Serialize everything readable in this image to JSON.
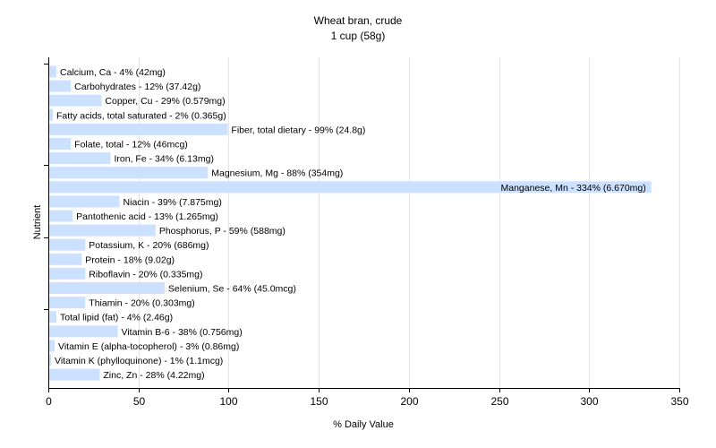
{
  "chart_data": {
    "type": "bar",
    "orientation": "horizontal",
    "title": "Wheat bran, crude",
    "subtitle": "1 cup (58g)",
    "xlabel": "% Daily Value",
    "ylabel": "Nutrient",
    "xlim": [
      0,
      350
    ],
    "xticks": [
      0,
      50,
      100,
      150,
      200,
      250,
      300,
      350
    ],
    "grid": true,
    "bar_color": "#cce0ff",
    "categories": [
      "Calcium, Ca",
      "Carbohydrates",
      "Copper, Cu",
      "Fatty acids, total saturated",
      "Fiber, total dietary",
      "Folate, total",
      "Iron, Fe",
      "Magnesium, Mg",
      "Manganese, Mn",
      "Niacin",
      "Pantothenic acid",
      "Phosphorus, P",
      "Potassium, K",
      "Protein",
      "Riboflavin",
      "Selenium, Se",
      "Thiamin",
      "Total lipid (fat)",
      "Vitamin B-6",
      "Vitamin E (alpha-tocopherol)",
      "Vitamin K (phylloquinone)",
      "Zinc, Zn"
    ],
    "values": [
      4,
      12,
      29,
      2,
      99,
      12,
      34,
      88,
      334,
      39,
      13,
      59,
      20,
      18,
      20,
      64,
      20,
      4,
      38,
      3,
      1,
      28
    ],
    "labels": [
      "Calcium, Ca - 4% (42mg)",
      "Carbohydrates - 12% (37.42g)",
      "Copper, Cu - 29% (0.579mg)",
      "Fatty acids, total saturated - 2% (0.365g)",
      "Fiber, total dietary - 99% (24.8g)",
      "Folate, total - 12% (46mcg)",
      "Iron, Fe - 34% (6.13mg)",
      "Magnesium, Mg - 88% (354mg)",
      "Manganese, Mn - 334% (6.670mg)",
      "Niacin - 39% (7.875mg)",
      "Pantothenic acid - 13% (1.265mg)",
      "Phosphorus, P - 59% (588mg)",
      "Potassium, K - 20% (686mg)",
      "Protein - 18% (9.02g)",
      "Riboflavin - 20% (0.335mg)",
      "Selenium, Se - 64% (45.0mcg)",
      "Thiamin - 20% (0.303mg)",
      "Total lipid (fat) - 4% (2.46g)",
      "Vitamin B-6 - 38% (0.756mg)",
      "Vitamin E (alpha-tocopherol) - 3% (0.86mg)",
      "Vitamin K (phylloquinone) - 1% (1.1mcg)",
      "Zinc, Zn - 28% (4.22mg)"
    ]
  }
}
